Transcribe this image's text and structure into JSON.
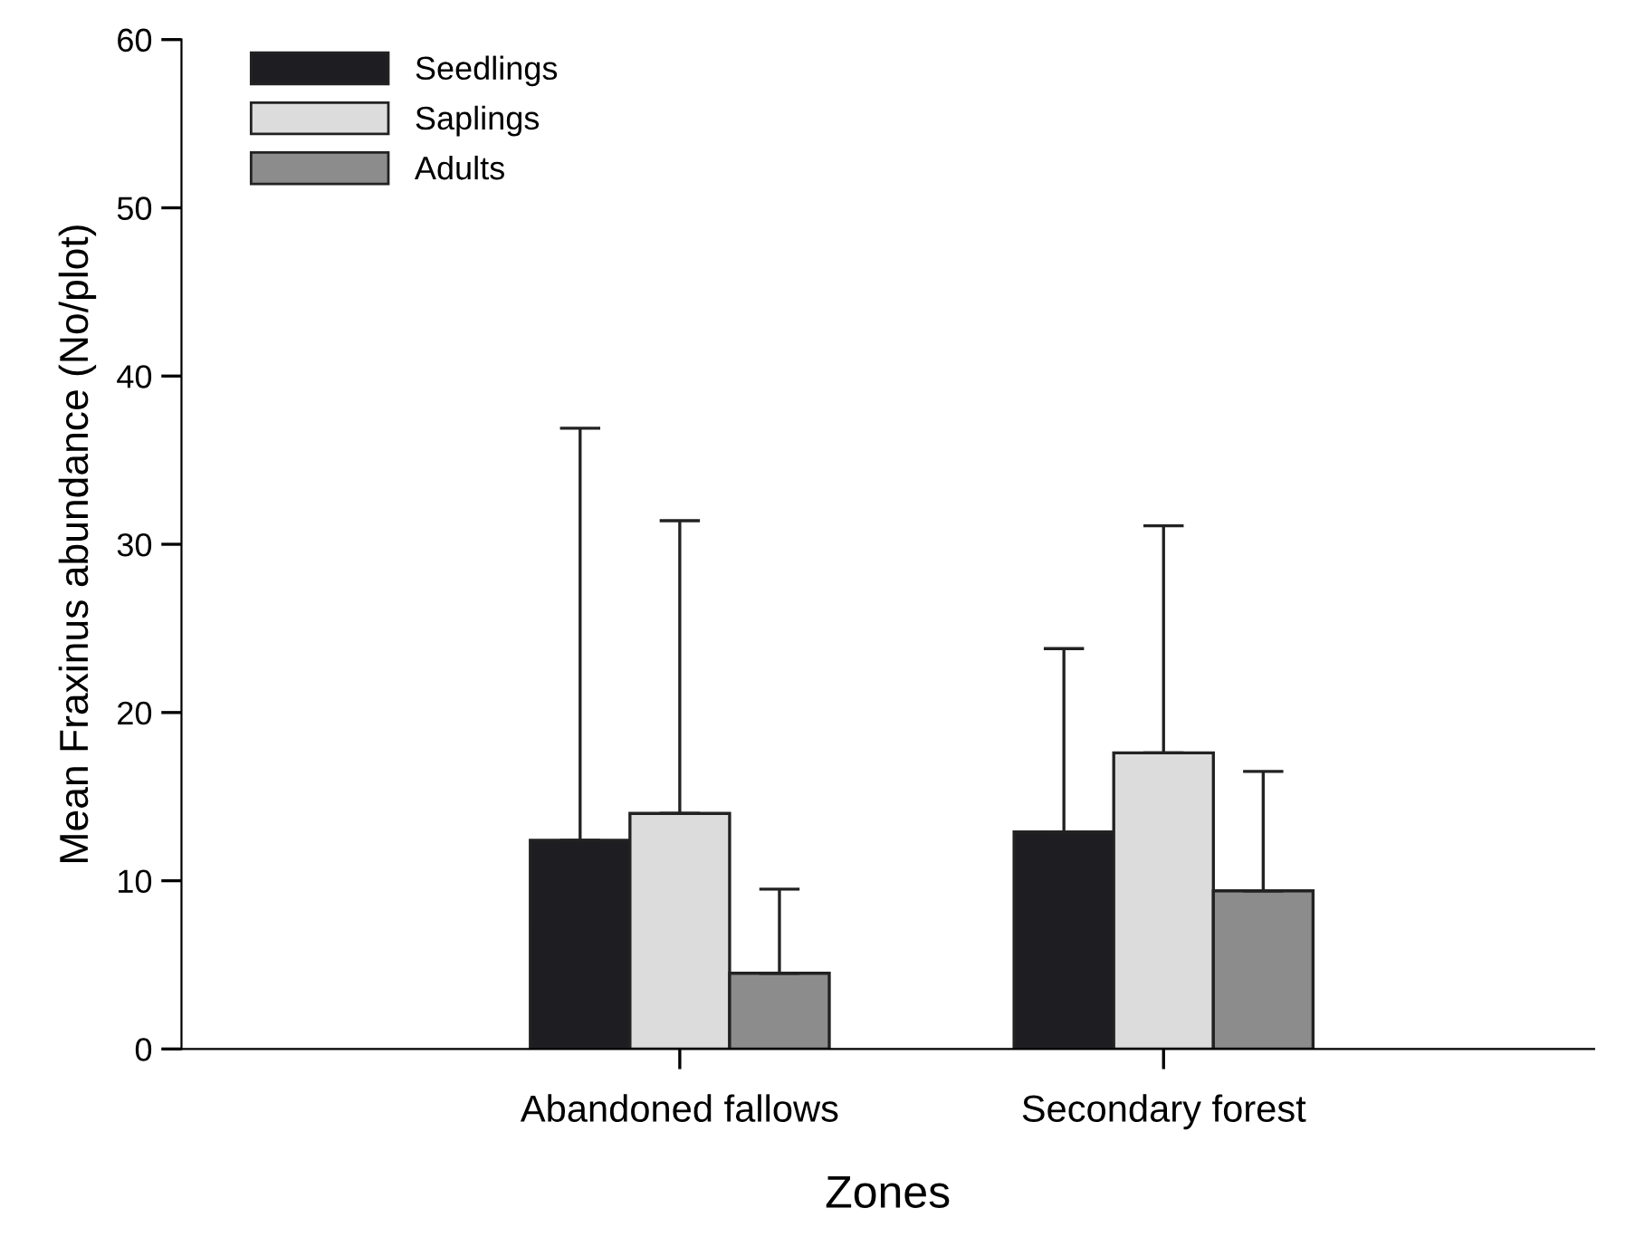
{
  "chart_data": {
    "type": "bar",
    "xlabel": "Zones",
    "ylabel": "Mean Fraxinus abundance (No/plot)",
    "categories": [
      "Abandoned fallows",
      "Secondary forest"
    ],
    "series": [
      {
        "name": "Seedlings",
        "color": "#1e1e22",
        "values": [
          12.4,
          12.9
        ],
        "errors": [
          [
            12.4,
            36.9
          ],
          [
            12.9,
            23.8
          ]
        ]
      },
      {
        "name": "Saplings",
        "color": "#dcdcdc",
        "values": [
          14.0,
          17.6
        ],
        "errors": [
          [
            14.0,
            31.4
          ],
          [
            17.6,
            31.1
          ]
        ]
      },
      {
        "name": "Adults",
        "color": "#8c8c8c",
        "values": [
          4.5,
          9.4
        ],
        "errors": [
          [
            4.5,
            9.5
          ],
          [
            9.4,
            16.5
          ]
        ]
      }
    ],
    "ylim": [
      0,
      60
    ],
    "yticks": [
      0,
      10,
      20,
      30,
      40,
      50,
      60
    ],
    "legend": "top left",
    "grid": false
  }
}
